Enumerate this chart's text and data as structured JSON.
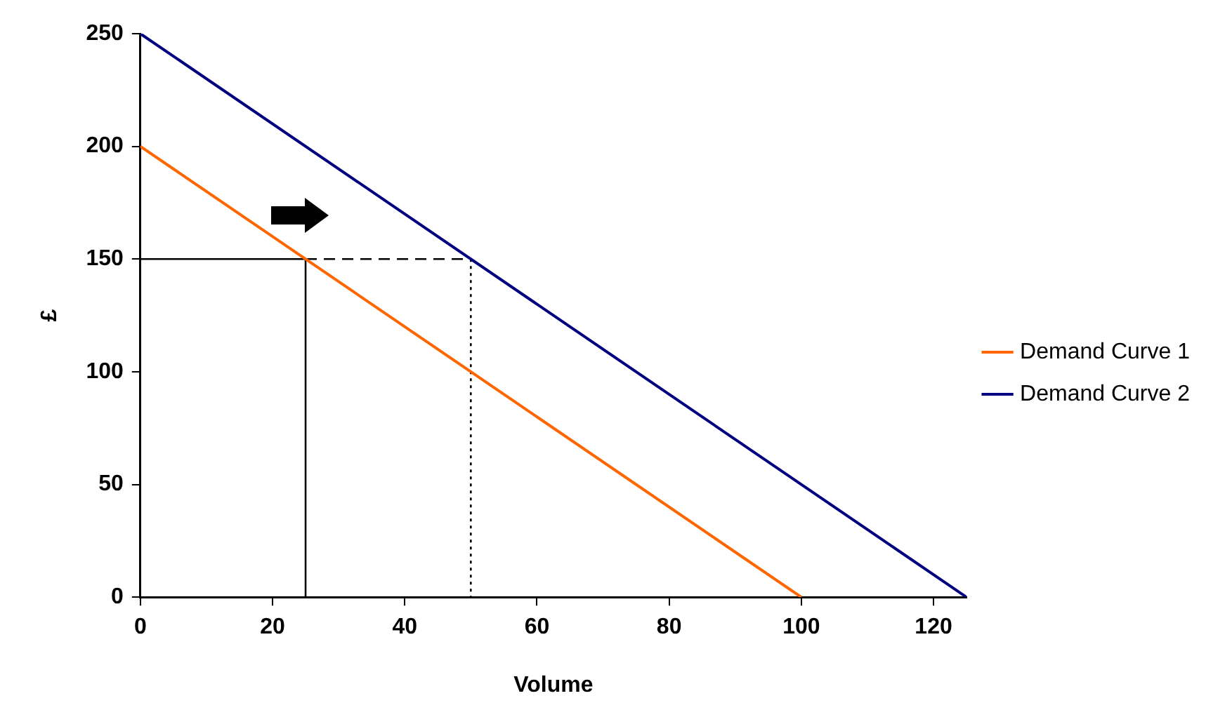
{
  "chart_data": {
    "type": "line",
    "xlabel": "Volume",
    "ylabel": "£",
    "xlim": [
      0,
      125
    ],
    "xticks": [
      0,
      20,
      40,
      60,
      80,
      100,
      120
    ],
    "ylim": [
      0,
      250
    ],
    "yticks": [
      0,
      50,
      100,
      150,
      200,
      250
    ],
    "grid": false,
    "legend": "right",
    "marker": "none",
    "series": [
      {
        "name": "Demand Curve 1",
        "color": "#ff6600",
        "x": [
          0,
          100
        ],
        "values": [
          200,
          0
        ]
      },
      {
        "name": "Demand Curve 2",
        "color": "#000080",
        "x": [
          0,
          125
        ],
        "values": [
          250,
          0
        ]
      },
      {
        "color": "#000000",
        "x": [
          0,
          25,
          25
        ],
        "values": [
          150,
          150,
          0
        ],
        "line_style": "solid"
      },
      {
        "color": "#000000",
        "x": [
          25,
          50
        ],
        "values": [
          150,
          150
        ],
        "line_style": "dashed"
      },
      {
        "color": "#000000",
        "x": [
          50,
          50
        ],
        "values": [
          150,
          0
        ],
        "line_style": "dotted"
      }
    ]
  }
}
